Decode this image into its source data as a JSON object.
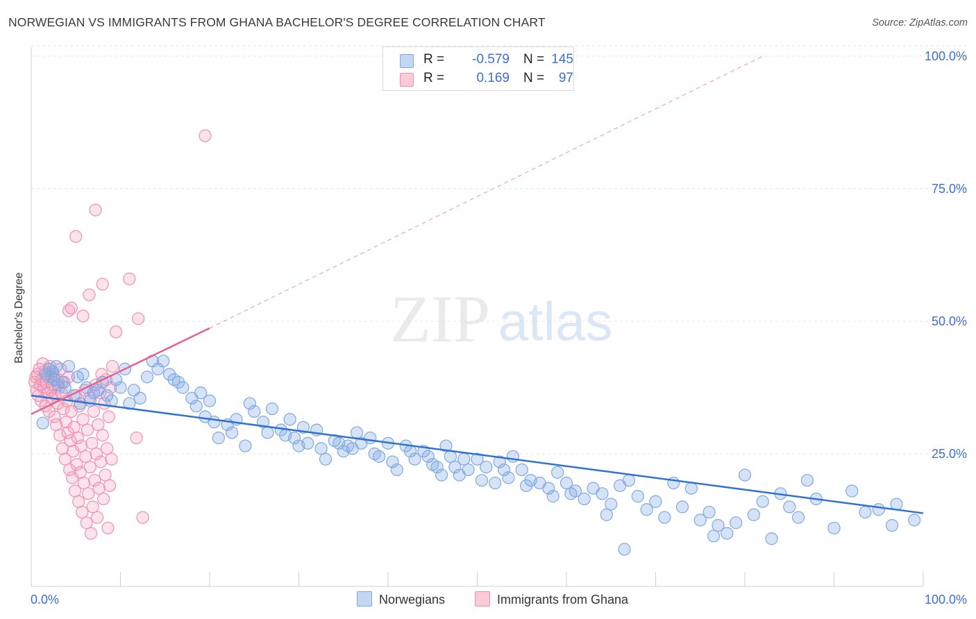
{
  "header": {
    "title": "NORWEGIAN VS IMMIGRANTS FROM GHANA BACHELOR'S DEGREE CORRELATION CHART",
    "source": "Source: ZipAtlas.com"
  },
  "watermark": {
    "zip": "ZIP",
    "atlas": "atlas"
  },
  "legend": {
    "rows": [
      {
        "r_label": "R =",
        "r_value": "-0.579",
        "n_label": "N =",
        "n_value": "145",
        "color": "#a9c6ef",
        "border": "#6f9ee0"
      },
      {
        "r_label": "R =",
        "r_value": "0.169",
        "n_label": "N =",
        "n_value": "97",
        "color": "#f7b8cb",
        "border": "#ee86a6"
      }
    ]
  },
  "bottom_legend": {
    "items": [
      "Norwegians",
      "Immigrants from Ghana"
    ]
  },
  "colors": {
    "blue_fill": "rgba(126,168,227,0.32)",
    "blue_stroke": "#7ea8e3",
    "blue_line": "#2f72d0",
    "pink_fill": "rgba(243,160,188,0.30)",
    "pink_stroke": "#f08fb0",
    "pink_line": "#e8608f",
    "axis_text": "#3b6fd1",
    "grid": "#e5e5e5"
  },
  "chart_data": {
    "type": "scatter",
    "title": "NORWEGIAN VS IMMIGRANTS FROM GHANA BACHELOR'S DEGREE CORRELATION CHART",
    "xlabel": "",
    "ylabel": "Bachelor's Degree",
    "xlim": [
      0,
      100
    ],
    "ylim": [
      0,
      102
    ],
    "x_tick_labels": [
      "0.0%",
      "100.0%"
    ],
    "y_ticks": [
      25,
      50,
      75,
      100
    ],
    "y_tick_labels": [
      "25.0%",
      "50.0%",
      "75.0%",
      "100.0%"
    ],
    "grid": true,
    "legend_position": "top-center",
    "series": [
      {
        "name": "Norwegians",
        "R": -0.579,
        "N": 145,
        "trend": {
          "x": [
            0,
            100
          ],
          "y": [
            36.0,
            13.8
          ]
        },
        "points": [
          [
            1.3,
            30.8
          ],
          [
            1.6,
            40.0
          ],
          [
            2.0,
            41.0
          ],
          [
            2.2,
            39.5
          ],
          [
            2.4,
            40.5
          ],
          [
            2.6,
            39.0
          ],
          [
            2.8,
            41.5
          ],
          [
            3.0,
            38.0
          ],
          [
            3.5,
            38.5
          ],
          [
            3.8,
            37.5
          ],
          [
            4.2,
            41.5
          ],
          [
            4.8,
            36.0
          ],
          [
            5.2,
            39.5
          ],
          [
            5.5,
            34.5
          ],
          [
            5.8,
            40.0
          ],
          [
            6.2,
            37.5
          ],
          [
            6.6,
            35.0
          ],
          [
            7.0,
            36.5
          ],
          [
            7.5,
            37.0
          ],
          [
            8.0,
            38.5
          ],
          [
            8.5,
            36.0
          ],
          [
            9.0,
            35.0
          ],
          [
            9.5,
            39.0
          ],
          [
            10.0,
            37.5
          ],
          [
            10.5,
            41.0
          ],
          [
            11.0,
            34.5
          ],
          [
            11.5,
            37.0
          ],
          [
            12.2,
            35.5
          ],
          [
            13.0,
            39.5
          ],
          [
            13.6,
            42.5
          ],
          [
            14.2,
            41.0
          ],
          [
            14.8,
            42.5
          ],
          [
            15.5,
            40.0
          ],
          [
            16.0,
            39.0
          ],
          [
            16.5,
            38.5
          ],
          [
            17.0,
            37.5
          ],
          [
            18.0,
            35.5
          ],
          [
            18.5,
            34.0
          ],
          [
            19.0,
            36.5
          ],
          [
            19.5,
            32.0
          ],
          [
            20.0,
            35.0
          ],
          [
            20.5,
            31.0
          ],
          [
            21.0,
            28.0
          ],
          [
            22.0,
            30.5
          ],
          [
            22.5,
            29.0
          ],
          [
            23.0,
            31.5
          ],
          [
            24.0,
            26.5
          ],
          [
            24.5,
            34.5
          ],
          [
            25.0,
            33.0
          ],
          [
            26.0,
            31.0
          ],
          [
            26.5,
            29.0
          ],
          [
            27.0,
            33.5
          ],
          [
            28.0,
            29.5
          ],
          [
            28.5,
            28.5
          ],
          [
            29.0,
            31.5
          ],
          [
            29.5,
            28.0
          ],
          [
            30.0,
            26.5
          ],
          [
            30.5,
            30.0
          ],
          [
            31.0,
            27.0
          ],
          [
            32.0,
            29.5
          ],
          [
            32.5,
            26.0
          ],
          [
            33.0,
            24.0
          ],
          [
            34.0,
            27.5
          ],
          [
            34.5,
            27.0
          ],
          [
            35.0,
            25.5
          ],
          [
            35.5,
            26.5
          ],
          [
            36.0,
            26.0
          ],
          [
            36.5,
            29.0
          ],
          [
            37.0,
            27.0
          ],
          [
            38.0,
            28.0
          ],
          [
            38.5,
            25.0
          ],
          [
            39.0,
            24.5
          ],
          [
            40.0,
            27.0
          ],
          [
            40.5,
            23.5
          ],
          [
            41.0,
            22.0
          ],
          [
            42.0,
            26.5
          ],
          [
            42.5,
            25.5
          ],
          [
            43.0,
            24.0
          ],
          [
            44.0,
            25.5
          ],
          [
            44.5,
            24.5
          ],
          [
            45.0,
            23.0
          ],
          [
            45.5,
            22.5
          ],
          [
            46.0,
            21.0
          ],
          [
            46.5,
            26.5
          ],
          [
            47.0,
            24.5
          ],
          [
            47.5,
            22.5
          ],
          [
            48.0,
            21.0
          ],
          [
            48.5,
            24.0
          ],
          [
            49.0,
            22.0
          ],
          [
            50.0,
            24.0
          ],
          [
            50.5,
            20.0
          ],
          [
            51.0,
            22.5
          ],
          [
            52.0,
            19.5
          ],
          [
            52.5,
            23.5
          ],
          [
            53.0,
            22.0
          ],
          [
            53.5,
            20.5
          ],
          [
            54.0,
            24.5
          ],
          [
            55.0,
            22.0
          ],
          [
            55.5,
            19.0
          ],
          [
            56.0,
            20.0
          ],
          [
            57.0,
            19.5
          ],
          [
            58.0,
            18.5
          ],
          [
            58.5,
            17.0
          ],
          [
            59.0,
            21.5
          ],
          [
            60.0,
            19.5
          ],
          [
            60.5,
            17.5
          ],
          [
            61.0,
            18.0
          ],
          [
            62.0,
            16.5
          ],
          [
            63.0,
            18.5
          ],
          [
            64.0,
            17.5
          ],
          [
            65.0,
            15.5
          ],
          [
            66.0,
            19.0
          ],
          [
            67.0,
            20.0
          ],
          [
            68.0,
            17.0
          ],
          [
            69.0,
            14.5
          ],
          [
            70.0,
            16.0
          ],
          [
            71.0,
            13.0
          ],
          [
            72.0,
            19.5
          ],
          [
            73.0,
            15.0
          ],
          [
            74.0,
            18.5
          ],
          [
            75.0,
            12.5
          ],
          [
            76.0,
            14.0
          ],
          [
            77.0,
            11.5
          ],
          [
            78.0,
            10.0
          ],
          [
            79.0,
            12.0
          ],
          [
            80.0,
            21.0
          ],
          [
            81.0,
            13.5
          ],
          [
            82.0,
            16.0
          ],
          [
            83.0,
            9.0
          ],
          [
            84.0,
            17.5
          ],
          [
            86.0,
            13.0
          ],
          [
            87.0,
            20.0
          ],
          [
            88.0,
            16.5
          ],
          [
            90.0,
            11.0
          ],
          [
            92.0,
            18.0
          ],
          [
            95.0,
            14.5
          ],
          [
            97.0,
            15.5
          ],
          [
            99.0,
            12.5
          ],
          [
            96.5,
            11.5
          ],
          [
            93.5,
            14.0
          ],
          [
            85.0,
            15.0
          ],
          [
            76.5,
            9.5
          ],
          [
            66.5,
            7.0
          ],
          [
            64.5,
            13.5
          ]
        ]
      },
      {
        "name": "Immigrants from Ghana",
        "R": 0.169,
        "N": 97,
        "trend": {
          "x": [
            0,
            20
          ],
          "y": [
            32.5,
            48.7
          ]
        },
        "trend_extension": {
          "x": [
            20,
            82
          ],
          "y": [
            48.7,
            100
          ]
        },
        "points": [
          [
            0.4,
            38.5
          ],
          [
            0.5,
            39.5
          ],
          [
            0.6,
            37.0
          ],
          [
            0.7,
            40.0
          ],
          [
            0.8,
            36.0
          ],
          [
            0.9,
            41.0
          ],
          [
            1.0,
            38.0
          ],
          [
            1.1,
            35.0
          ],
          [
            1.2,
            39.0
          ],
          [
            1.3,
            42.0
          ],
          [
            1.4,
            37.5
          ],
          [
            1.5,
            40.5
          ],
          [
            1.6,
            34.0
          ],
          [
            1.7,
            38.5
          ],
          [
            1.8,
            36.5
          ],
          [
            1.9,
            39.5
          ],
          [
            2.0,
            33.0
          ],
          [
            2.1,
            41.5
          ],
          [
            2.2,
            37.0
          ],
          [
            2.3,
            35.5
          ],
          [
            2.4,
            38.0
          ],
          [
            2.5,
            40.0
          ],
          [
            2.6,
            32.0
          ],
          [
            2.7,
            36.0
          ],
          [
            2.8,
            30.5
          ],
          [
            2.9,
            39.0
          ],
          [
            3.0,
            34.5
          ],
          [
            3.1,
            37.5
          ],
          [
            3.2,
            28.5
          ],
          [
            3.3,
            41.0
          ],
          [
            3.4,
            36.5
          ],
          [
            3.5,
            26.0
          ],
          [
            3.6,
            33.5
          ],
          [
            3.7,
            38.5
          ],
          [
            3.8,
            24.0
          ],
          [
            3.9,
            31.0
          ],
          [
            4.0,
            35.0
          ],
          [
            4.1,
            29.0
          ],
          [
            4.2,
            39.5
          ],
          [
            4.3,
            22.0
          ],
          [
            4.4,
            27.5
          ],
          [
            4.5,
            33.0
          ],
          [
            4.6,
            20.5
          ],
          [
            4.7,
            25.5
          ],
          [
            4.8,
            30.0
          ],
          [
            4.9,
            18.0
          ],
          [
            5.0,
            36.0
          ],
          [
            5.1,
            23.0
          ],
          [
            5.2,
            28.0
          ],
          [
            5.3,
            16.0
          ],
          [
            5.4,
            34.0
          ],
          [
            5.5,
            21.5
          ],
          [
            5.6,
            26.5
          ],
          [
            5.7,
            14.0
          ],
          [
            5.8,
            31.5
          ],
          [
            5.9,
            19.5
          ],
          [
            6.0,
            37.0
          ],
          [
            6.1,
            24.5
          ],
          [
            6.2,
            12.0
          ],
          [
            6.3,
            29.5
          ],
          [
            6.4,
            17.5
          ],
          [
            6.5,
            35.5
          ],
          [
            6.6,
            22.5
          ],
          [
            6.7,
            10.0
          ],
          [
            6.8,
            27.0
          ],
          [
            6.9,
            15.0
          ],
          [
            7.0,
            33.0
          ],
          [
            7.1,
            20.0
          ],
          [
            7.2,
            38.0
          ],
          [
            7.3,
            25.0
          ],
          [
            7.4,
            13.0
          ],
          [
            7.5,
            30.5
          ],
          [
            7.6,
            18.5
          ],
          [
            7.7,
            36.5
          ],
          [
            7.8,
            23.5
          ],
          [
            7.9,
            40.0
          ],
          [
            8.0,
            28.5
          ],
          [
            8.1,
            16.5
          ],
          [
            8.2,
            34.5
          ],
          [
            8.3,
            21.0
          ],
          [
            8.4,
            39.0
          ],
          [
            8.5,
            26.0
          ],
          [
            8.6,
            11.0
          ],
          [
            8.7,
            32.0
          ],
          [
            8.8,
            19.0
          ],
          [
            8.9,
            37.5
          ],
          [
            9.0,
            24.0
          ],
          [
            9.1,
            41.5
          ],
          [
            4.2,
            52.0
          ],
          [
            6.5,
            55.0
          ],
          [
            5.0,
            66.0
          ],
          [
            4.5,
            52.5
          ],
          [
            5.8,
            51.0
          ],
          [
            8.0,
            57.0
          ],
          [
            7.2,
            71.0
          ],
          [
            9.5,
            48.0
          ],
          [
            19.5,
            85.0
          ],
          [
            11.0,
            58.0
          ],
          [
            12.0,
            50.5
          ],
          [
            11.8,
            28.0
          ],
          [
            12.5,
            13.0
          ]
        ]
      }
    ]
  }
}
